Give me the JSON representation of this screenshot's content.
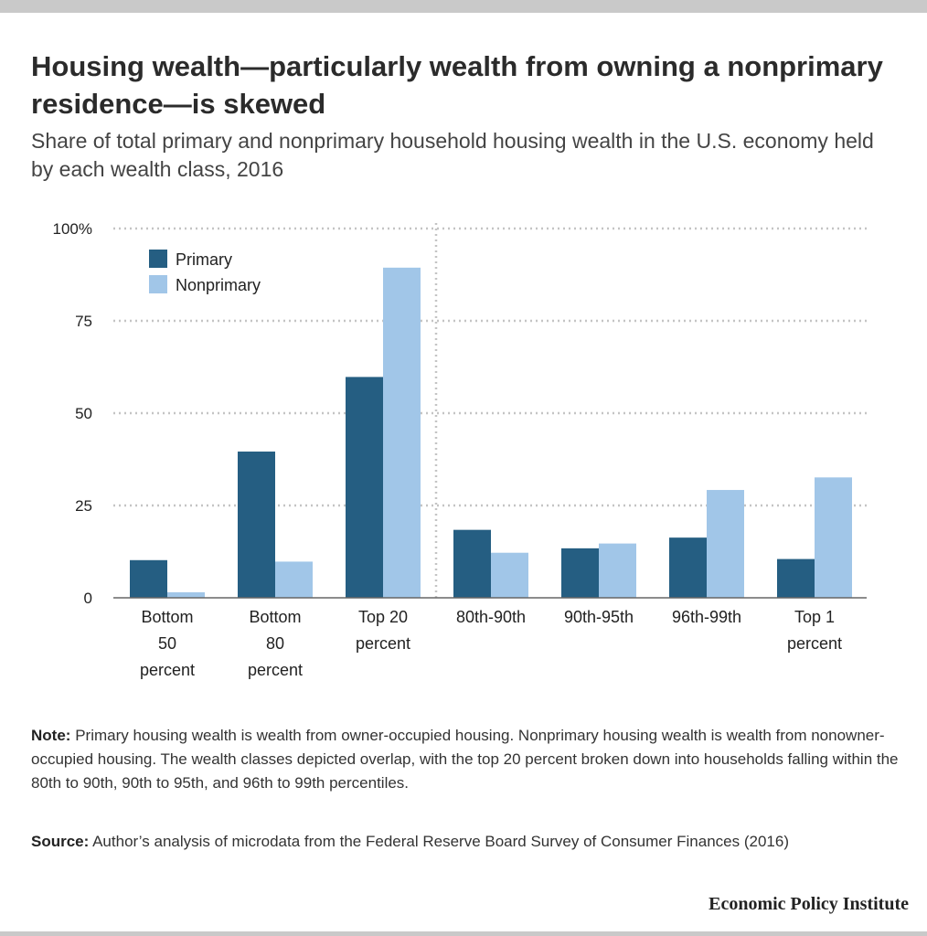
{
  "header": {
    "title": "Housing wealth—particularly wealth from owning a nonprimary residence—is skewed",
    "subtitle": "Share of total primary and nonprimary household housing wealth in the U.S. economy held by each wealth class, 2016"
  },
  "chart_data": {
    "type": "bar",
    "title": "Housing wealth—particularly wealth from owning a nonprimary residence—is skewed",
    "subtitle": "Share of total primary and nonprimary household housing wealth in the U.S. economy held by each wealth class, 2016",
    "categories": [
      "Bottom 50 percent",
      "Bottom 80 percent",
      "Top 20 percent",
      "80th-90th",
      "90th-95th",
      "96th-99th",
      "Top 1 percent"
    ],
    "category_lines": [
      [
        "Bottom",
        "50",
        "percent"
      ],
      [
        "Bottom",
        "80",
        "percent"
      ],
      [
        "Top 20",
        "percent"
      ],
      [
        "80th-90th"
      ],
      [
        "90th-95th"
      ],
      [
        "96th-99th"
      ],
      [
        "Top 1",
        "percent"
      ]
    ],
    "series": [
      {
        "name": "Primary",
        "color": "#255e82",
        "values": [
          10.2,
          39.6,
          59.8,
          18.4,
          13.4,
          16.3,
          10.5
        ]
      },
      {
        "name": "Nonprimary",
        "color": "#a1c6e8",
        "values": [
          1.5,
          9.8,
          89.4,
          12.2,
          14.7,
          29.2,
          32.6
        ]
      }
    ],
    "y_ticks": [
      "0",
      "25",
      "50",
      "75",
      "100%"
    ],
    "y_tick_values": [
      0,
      25,
      50,
      75,
      100
    ],
    "ylim": [
      0,
      100
    ],
    "grid": true,
    "legend_position": "top-left",
    "xlabel": "",
    "ylabel": ""
  },
  "footer": {
    "note_label": "Note:",
    "note_text": "Primary housing wealth is wealth from owner-occupied housing. Nonprimary housing wealth is wealth from nonowner-occupied housing. The wealth classes depicted overlap, with the top 20 percent broken down into households falling within the 80th to 90th, 90th to 95th, and 96th to 99th percentiles.",
    "source_label": "Source:",
    "source_text": "Author’s analysis of microdata from the Federal Reserve Board Survey of Consumer Finances (2016)",
    "brand": "Economic Policy Institute"
  }
}
